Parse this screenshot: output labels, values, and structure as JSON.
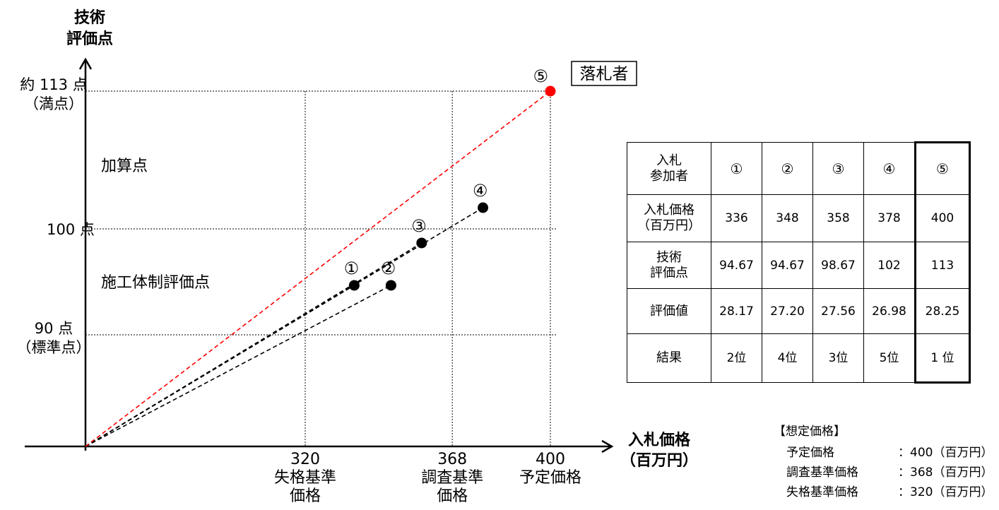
{
  "chart_data": {
    "type": "scatter",
    "y_axis_title_lines": [
      "技術",
      "評価点"
    ],
    "x_axis_title_lines": [
      "入札価格",
      "（百万円）"
    ],
    "y_ticks": [
      {
        "value": 113,
        "lines": [
          "約 113 点",
          "（満点）"
        ]
      },
      {
        "value": 100,
        "lines": [
          "100 点"
        ]
      },
      {
        "value": 90,
        "lines": [
          "90 点",
          "（標準点）"
        ]
      }
    ],
    "x_ticks": [
      {
        "value": 320,
        "lines": [
          "320",
          "失格基準",
          "価格"
        ]
      },
      {
        "value": 368,
        "lines": [
          "368",
          "調査基準",
          "価格"
        ]
      },
      {
        "value": 400,
        "lines": [
          "400",
          "予定価格"
        ]
      }
    ],
    "region_labels": [
      {
        "text": "加算点",
        "y_value": 106
      },
      {
        "text": "施工体制評価点",
        "y_value": 95
      }
    ],
    "points": [
      {
        "label": "①",
        "x": 336,
        "y": 94.67,
        "color": "#000000"
      },
      {
        "label": "②",
        "x": 348,
        "y": 94.67,
        "color": "#000000"
      },
      {
        "label": "③",
        "x": 358,
        "y": 98.67,
        "color": "#000000"
      },
      {
        "label": "④",
        "x": 378,
        "y": 102,
        "color": "#000000"
      },
      {
        "label": "⑤",
        "x": 400,
        "y": 113,
        "color": "#ff0000"
      }
    ],
    "winner_label": "落札者",
    "winner_index": 4,
    "grid": "dotted",
    "line_colors": {
      "normal": "#000000",
      "winner": "#ff0000"
    }
  },
  "table": {
    "header_label_lines": [
      "入札",
      "参加者"
    ],
    "participants": [
      "①",
      "②",
      "③",
      "④",
      "⑤"
    ],
    "rows": [
      {
        "label_lines": [
          "入札価格",
          "（百万円）"
        ],
        "values": [
          "336",
          "348",
          "358",
          "378",
          "400"
        ]
      },
      {
        "label_lines": [
          "技術",
          "評価点"
        ],
        "values": [
          "94.67",
          "94.67",
          "98.67",
          "102",
          "113"
        ]
      },
      {
        "label_lines": [
          "評価値"
        ],
        "values": [
          "28.17",
          "27.20",
          "27.56",
          "26.98",
          "28.25"
        ]
      },
      {
        "label_lines": [
          "結果"
        ],
        "values": [
          "2位",
          "4位",
          "3位",
          "5位",
          "1 位"
        ]
      }
    ]
  },
  "assumed_prices": {
    "title": "【想定価格】",
    "items": [
      {
        "label": "予定価格",
        "value": "：400（百万円）"
      },
      {
        "label": "調査基準価格",
        "value": "：368（百万円）"
      },
      {
        "label": "失格基準価格",
        "value": "：320（百万円）"
      }
    ]
  }
}
